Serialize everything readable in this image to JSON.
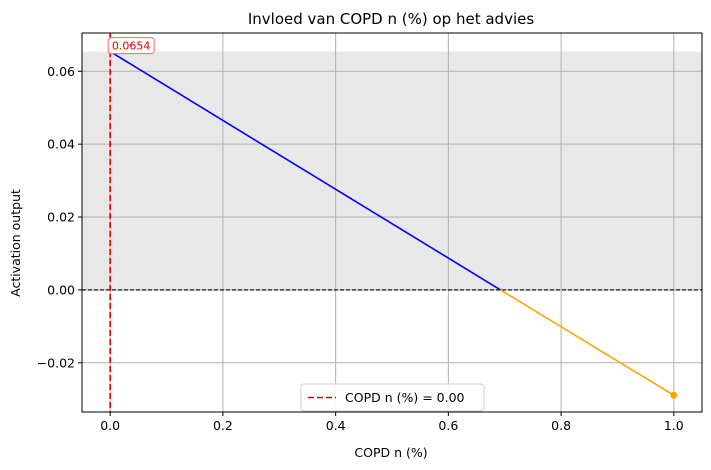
{
  "chart_data": {
    "type": "line",
    "title": "Invloed van COPD n (%) op het advies",
    "xlabel": "COPD n (%)",
    "ylabel": "Activation output",
    "xlim": [
      -0.05,
      1.05
    ],
    "ylim": [
      -0.0335,
      0.0705
    ],
    "x_ticks": [
      0.0,
      0.2,
      0.4,
      0.6,
      0.8,
      1.0
    ],
    "x_tick_labels": [
      "0.0",
      "0.2",
      "0.4",
      "0.6",
      "0.8",
      "1.0"
    ],
    "y_ticks": [
      -0.02,
      0.0,
      0.02,
      0.04,
      0.06
    ],
    "y_tick_labels": [
      "−0.02",
      "0.00",
      "0.02",
      "0.04",
      "0.06"
    ],
    "grid": true,
    "series": [
      {
        "color": "#0000ff",
        "points": [
          [
            0.0,
            0.0654
          ],
          [
            0.6925,
            0.0
          ]
        ]
      },
      {
        "color": "#ffa500",
        "points": [
          [
            0.6925,
            0.0
          ],
          [
            1.0,
            -0.0289
          ]
        ]
      }
    ],
    "end_marker": {
      "x": 1.0,
      "y": -0.0289,
      "color": "#ffa500"
    },
    "shaded_region": {
      "y_from": 0.0,
      "y_to": 0.0654,
      "color": "#e8e8e8"
    },
    "zero_line": {
      "y": 0.0,
      "color": "#000000",
      "style": "dashed"
    },
    "vertical_line": {
      "x": 0.0,
      "color": "#dd0000",
      "style": "dashed",
      "label": "COPD n (%) = 0.00"
    },
    "annotation": {
      "x": 0.0,
      "y": 0.0654,
      "text": "0.0654",
      "color": "#e00000"
    },
    "legend": {
      "position": "bottom-center",
      "entries": [
        "COPD n (%) = 0.00"
      ]
    }
  }
}
